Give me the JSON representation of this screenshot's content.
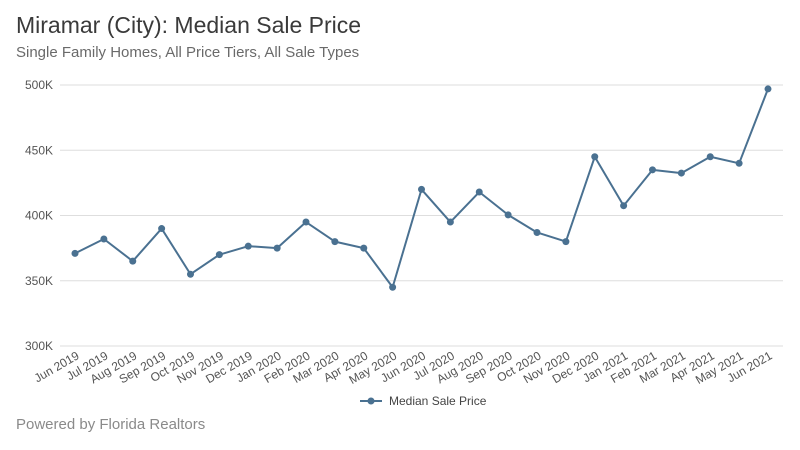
{
  "header": {
    "title": "Miramar (City): Median Sale Price",
    "subtitle": "Single Family Homes, All Price Tiers, All Sale Types"
  },
  "footer": {
    "text": "Powered by Florida Realtors"
  },
  "chart_data": {
    "type": "line",
    "title": "Miramar (City): Median Sale Price",
    "subtitle": "Single Family Homes, All Price Tiers, All Sale Types",
    "xlabel": "",
    "ylabel": "",
    "categories": [
      "Jun 2019",
      "Jul 2019",
      "Aug 2019",
      "Sep 2019",
      "Oct 2019",
      "Nov 2019",
      "Dec 2019",
      "Jan 2020",
      "Feb 2020",
      "Mar 2020",
      "Apr 2020",
      "May 2020",
      "Jun 2020",
      "Jul 2020",
      "Aug 2020",
      "Sep 2020",
      "Oct 2020",
      "Nov 2020",
      "Dec 2020",
      "Jan 2021",
      "Feb 2021",
      "Mar 2021",
      "Apr 2021",
      "May 2021",
      "Jun 2021"
    ],
    "series": [
      {
        "name": "Median Sale Price",
        "color": "#4a7191",
        "values": [
          371000,
          382000,
          365000,
          390000,
          355000,
          370000,
          376500,
          375000,
          395000,
          380000,
          375000,
          345000,
          420000,
          395000,
          418000,
          400500,
          387000,
          380000,
          445000,
          407500,
          435000,
          432500,
          445000,
          440000,
          497000
        ]
      }
    ],
    "ylim": [
      300000,
      500000
    ],
    "yticks": [
      300000,
      350000,
      400000,
      450000,
      500000
    ],
    "ytick_labels": [
      "300K",
      "350K",
      "400K",
      "450K",
      "500K"
    ],
    "grid": true,
    "legend": "bottom-center"
  }
}
